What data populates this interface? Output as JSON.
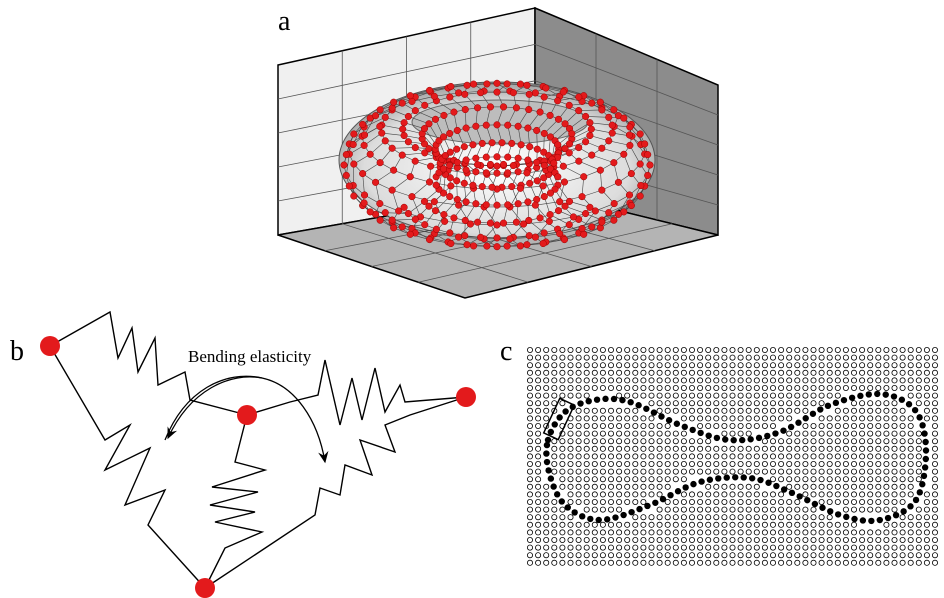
{
  "panels": [
    {
      "label": "a"
    },
    {
      "label": "b",
      "annotation": "Bending elasticity"
    },
    {
      "label": "c"
    }
  ]
}
